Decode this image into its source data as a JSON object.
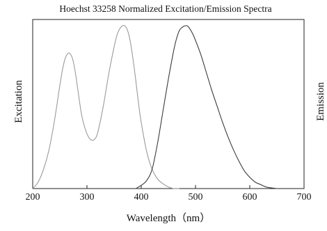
{
  "chart_data": {
    "type": "line",
    "title": "Hoechst 33258 Normalized Excitation/Emission Spectra",
    "xlabel": "Wavelength（nm）",
    "ylabel_left": "Excitation",
    "ylabel_right": "Emission",
    "xlim": [
      200,
      700
    ],
    "ylim": [
      0,
      1.05
    ],
    "x_ticks": [
      "200",
      "300",
      "400",
      "500",
      "600",
      "700"
    ],
    "grid": false,
    "colors": {
      "excitation": "#9a9a9a",
      "emission": "#3a3a3a"
    },
    "series": [
      {
        "id": "excitation",
        "x": [
          200,
          210,
          220,
          230,
          240,
          250,
          255,
          260,
          265,
          268,
          272,
          276,
          280,
          285,
          290,
          295,
          300,
          305,
          310,
          315,
          320,
          330,
          340,
          350,
          355,
          360,
          365,
          370,
          375,
          380,
          385,
          390,
          395,
          400,
          410,
          420,
          430,
          440,
          450,
          460,
          470
        ],
        "y": [
          0.0,
          0.04,
          0.12,
          0.24,
          0.42,
          0.64,
          0.74,
          0.81,
          0.84,
          0.84,
          0.82,
          0.77,
          0.69,
          0.57,
          0.46,
          0.39,
          0.34,
          0.31,
          0.3,
          0.31,
          0.35,
          0.51,
          0.71,
          0.88,
          0.95,
          0.99,
          1.01,
          1.01,
          0.98,
          0.91,
          0.8,
          0.67,
          0.53,
          0.41,
          0.23,
          0.12,
          0.06,
          0.03,
          0.01,
          0.0,
          0.0
        ]
      },
      {
        "id": "emission",
        "x": [
          390,
          400,
          410,
          420,
          430,
          440,
          450,
          460,
          465,
          470,
          475,
          480,
          485,
          490,
          495,
          500,
          510,
          520,
          530,
          540,
          550,
          560,
          570,
          580,
          590,
          600,
          610,
          620,
          630,
          640,
          650
        ],
        "y": [
          0.0,
          0.02,
          0.05,
          0.12,
          0.28,
          0.48,
          0.68,
          0.86,
          0.93,
          0.98,
          1.0,
          1.01,
          1.01,
          0.99,
          0.96,
          0.92,
          0.83,
          0.72,
          0.61,
          0.51,
          0.41,
          0.32,
          0.24,
          0.17,
          0.11,
          0.07,
          0.04,
          0.025,
          0.01,
          0.004,
          0.0
        ]
      }
    ]
  }
}
